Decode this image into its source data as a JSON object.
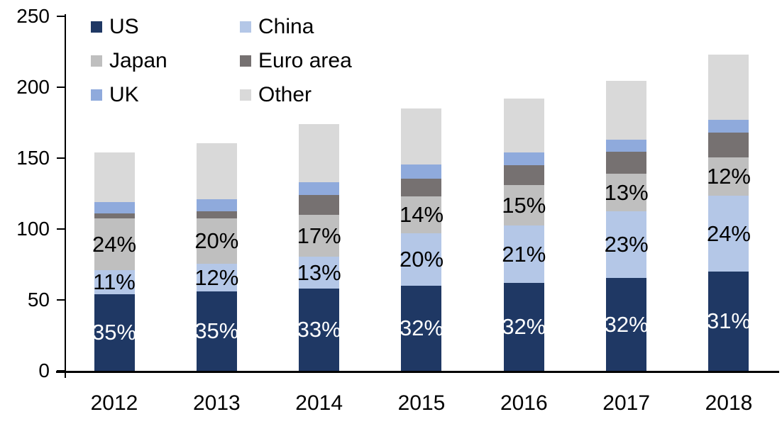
{
  "chart_data": {
    "type": "bar",
    "stacked": true,
    "title": "",
    "xlabel": "",
    "ylabel": "",
    "ylim": [
      0,
      250
    ],
    "yticks": [
      "0",
      "50",
      "100",
      "150",
      "200",
      "250"
    ],
    "grid": false,
    "legend_position": "top-left-inside",
    "legend_columns": 2,
    "background_color": "#FFFFFF",
    "axis_color": "#000000",
    "categories": [
      "2012",
      "2013",
      "2014",
      "2015",
      "2016",
      "2017",
      "2018"
    ],
    "totals": [
      154,
      160.5,
      174,
      185,
      192,
      204.5,
      223
    ],
    "series": [
      {
        "name": "US",
        "color": "#1F3864",
        "values": [
          54,
          56,
          58,
          60,
          62,
          65.5,
          70
        ],
        "labels": [
          "35%",
          "35%",
          "33%",
          "32%",
          "32%",
          "32%",
          "31%"
        ],
        "label_color": "#FFFFFF"
      },
      {
        "name": "China",
        "color": "#B4C7E7",
        "values": [
          17,
          19.5,
          22.5,
          37,
          40.5,
          47,
          53.5
        ],
        "labels": [
          "11%",
          "12%",
          "13%",
          "20%",
          "21%",
          "23%",
          "24%"
        ],
        "label_color": "#000000"
      },
      {
        "name": "Japan",
        "color": "#BFBFBF",
        "values": [
          36.5,
          32,
          29.5,
          26,
          28.5,
          26.5,
          27
        ],
        "labels": [
          "24%",
          "20%",
          "17%",
          "14%",
          "15%",
          "13%",
          "12%"
        ],
        "label_color": "#000000"
      },
      {
        "name": "Euro area",
        "color": "#767171",
        "values": [
          3.5,
          5,
          14,
          12.5,
          14,
          15.5,
          17.5
        ],
        "labels": null
      },
      {
        "name": "UK",
        "color": "#8FAADC",
        "values": [
          8,
          8.5,
          9,
          10,
          9,
          8.5,
          9
        ],
        "labels": null
      },
      {
        "name": "Other",
        "color": "#D9D9D9",
        "values": [
          35,
          39.5,
          41,
          39.5,
          38,
          41.5,
          46
        ],
        "labels": null
      }
    ],
    "legend_order": [
      "US",
      "China",
      "Japan",
      "Euro area",
      "UK",
      "Other"
    ]
  }
}
